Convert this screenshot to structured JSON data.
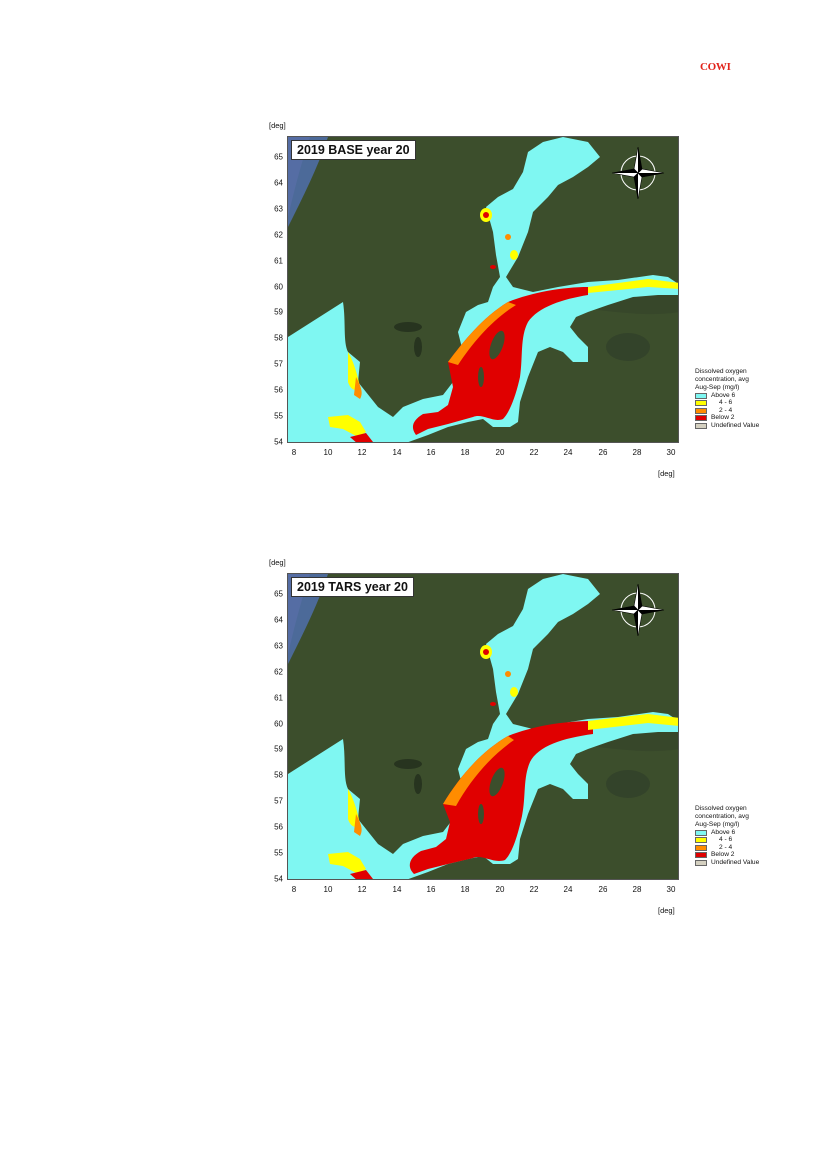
{
  "header": {
    "logo_text": "COWI"
  },
  "axis_unit": "[deg]",
  "y_ticks": [
    "65",
    "64",
    "63",
    "62",
    "61",
    "60",
    "59",
    "58",
    "57",
    "56",
    "55",
    "54"
  ],
  "x_ticks": [
    "8",
    "10",
    "12",
    "14",
    "16",
    "18",
    "20",
    "22",
    "24",
    "26",
    "28",
    "30"
  ],
  "extent": {
    "lon": [
      8,
      30
    ],
    "lat": [
      54,
      65.7
    ]
  },
  "legend": {
    "title": [
      "Dissolved oxygen",
      "concentration, avg",
      "Aug-Sep (mg/l)"
    ],
    "items": [
      {
        "label": "Above 6",
        "color": "#7ff7f2"
      },
      {
        "label": "4 - 6",
        "color": "#ffff00"
      },
      {
        "label": "2 - 4",
        "color": "#ff8c00"
      },
      {
        "label": "Below 2",
        "color": "#e00000"
      },
      {
        "label": "Undefined Value",
        "color": "#d4d0c0"
      }
    ]
  },
  "maps": [
    {
      "title": "2019 BASE year 20"
    },
    {
      "title": "2019 TARS year 20"
    }
  ],
  "colors": {
    "land": "#3c4e2c",
    "sea_outside": "#46588f",
    "water_above6": "#7ff7f2"
  }
}
